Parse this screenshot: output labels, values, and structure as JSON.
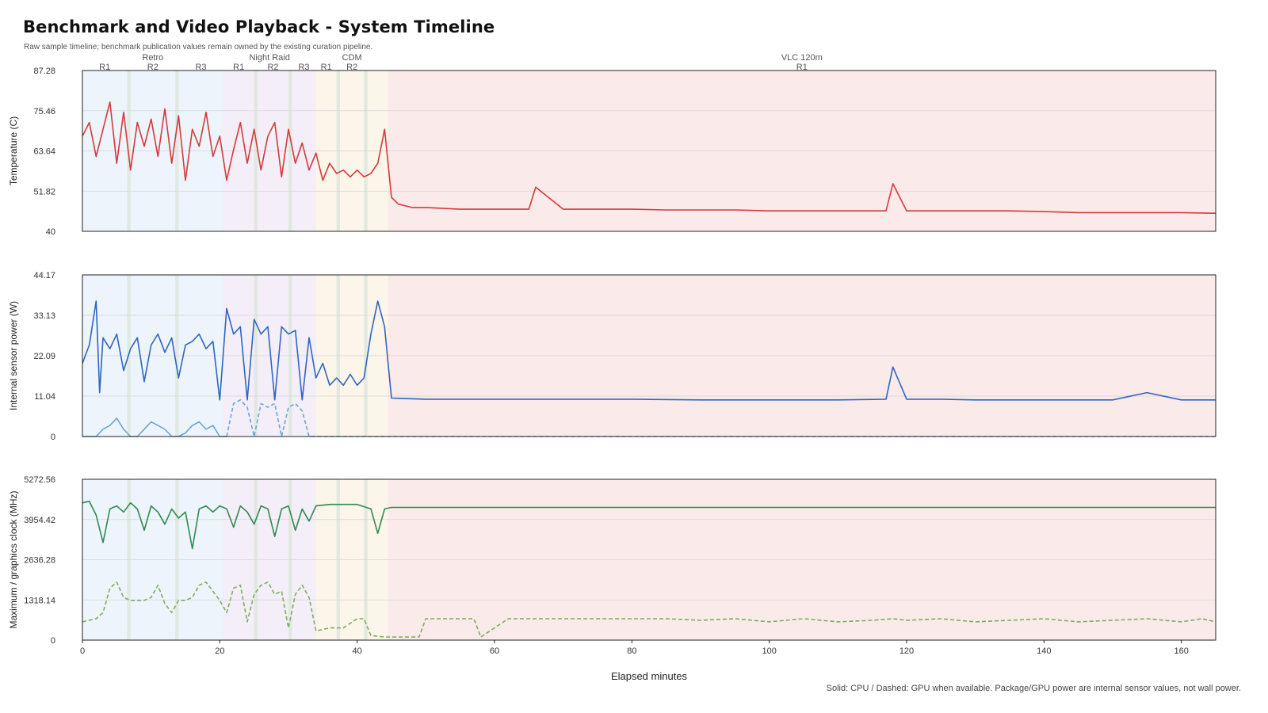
{
  "header": {
    "title": "Benchmark and Video Playback - System Timeline",
    "subtitle": "Raw sample timeline; benchmark publication values remain owned by the existing curation pipeline.",
    "footnote": "Solid: CPU / Dashed: GPU when available. Package/GPU power are internal sensor values, not wall power."
  },
  "chart_data": {
    "type": "line",
    "xlabel": "Elapsed minutes",
    "xlim": [
      0,
      165
    ],
    "xticks": [
      0,
      20,
      40,
      60,
      80,
      100,
      120,
      140,
      160
    ],
    "phases": [
      {
        "name": "Retro",
        "start": 0,
        "end": 20.5,
        "color": "#eef4fb",
        "runs": [
          {
            "label": "R1",
            "start": 0,
            "end": 6.5
          },
          {
            "label": "R2",
            "start": 7,
            "end": 13.5
          },
          {
            "label": "R3",
            "start": 14,
            "end": 20.5
          }
        ]
      },
      {
        "name": "Night Raid",
        "start": 20.5,
        "end": 34,
        "color": "#f4eef8",
        "runs": [
          {
            "label": "R1",
            "start": 20.5,
            "end": 25
          },
          {
            "label": "R2",
            "start": 25.5,
            "end": 30
          },
          {
            "label": "R3",
            "start": 30.5,
            "end": 34
          }
        ]
      },
      {
        "name": "CDM",
        "start": 34,
        "end": 44.5,
        "color": "#fcf5e9",
        "runs": [
          {
            "label": "R1",
            "start": 34,
            "end": 37
          },
          {
            "label": "R2",
            "start": 37.5,
            "end": 41
          }
        ]
      },
      {
        "name": "VLC 120m",
        "start": 44.5,
        "end": 165,
        "color": "#fbeaea",
        "runs": [
          {
            "label": "R1",
            "start": 44.5,
            "end": 165
          }
        ]
      }
    ],
    "panels": [
      {
        "ylabel": "Temperature (C)",
        "ylim": [
          40,
          87.28
        ],
        "yticks": [
          "40",
          "51.82",
          "63.64",
          "75.46",
          "87.28"
        ],
        "series": [
          {
            "color": "#d43a3a",
            "dashed": false,
            "x": [
              0,
              1,
              2,
              3,
              4,
              5,
              6,
              7,
              8,
              9,
              10,
              11,
              12,
              13,
              14,
              15,
              16,
              17,
              18,
              19,
              20,
              21,
              22,
              23,
              24,
              25,
              26,
              27,
              28,
              29,
              30,
              31,
              32,
              33,
              34,
              35,
              36,
              37,
              38,
              39,
              40,
              41,
              42,
              43,
              44,
              45,
              46,
              48,
              50,
              55,
              60,
              65,
              66,
              70,
              75,
              80,
              85,
              90,
              95,
              100,
              105,
              110,
              117,
              118,
              120,
              125,
              128,
              130,
              135,
              140,
              145,
              150,
              155,
              160,
              165
            ],
            "y": [
              68,
              72,
              62,
              70,
              78,
              60,
              75,
              58,
              72,
              65,
              73,
              62,
              76,
              60,
              74,
              55,
              70,
              65,
              75,
              62,
              68,
              55,
              64,
              72,
              60,
              70,
              58,
              68,
              72,
              56,
              70,
              60,
              66,
              58,
              63,
              55,
              60,
              57,
              58,
              56,
              58,
              56,
              57,
              60,
              70,
              50,
              48,
              47,
              47,
              46.5,
              46.5,
              46.5,
              53,
              46.5,
              46.5,
              46.5,
              46.3,
              46.3,
              46.3,
              46,
              46,
              46,
              46,
              54,
              46,
              46,
              46,
              46,
              46,
              45.8,
              45.5,
              45.5,
              45.5,
              45.5,
              45.3
            ]
          }
        ]
      },
      {
        "ylabel": "Internal sensor power (W)",
        "ylim": [
          0,
          44.17
        ],
        "yticks": [
          "0",
          "11.04",
          "22.09",
          "33.13",
          "44.17"
        ],
        "series": [
          {
            "color": "#2f66c0",
            "dashed": false,
            "x": [
              0,
              1,
              2,
              2.5,
              3,
              4,
              5,
              6,
              7,
              8,
              9,
              10,
              11,
              12,
              13,
              14,
              15,
              16,
              17,
              18,
              19,
              20,
              21,
              22,
              23,
              24,
              25,
              26,
              27,
              28,
              29,
              30,
              31,
              32,
              33,
              34,
              35,
              36,
              37,
              38,
              39,
              40,
              41,
              42,
              43,
              44,
              44.5,
              45,
              50,
              55,
              60,
              70,
              80,
              90,
              100,
              110,
              117,
              118,
              120,
              125,
              130,
              140,
              150,
              155,
              160,
              165
            ],
            "y": [
              20,
              25,
              37,
              12,
              27,
              24,
              28,
              18,
              24,
              27,
              15,
              25,
              28,
              23,
              27,
              16,
              25,
              26,
              28,
              24,
              26,
              10,
              35,
              28,
              30,
              10,
              32,
              28,
              30,
              10,
              30,
              28,
              29,
              10,
              27,
              16,
              20,
              14,
              16,
              14,
              17,
              14,
              16,
              28,
              37,
              30,
              20,
              10.5,
              10.2,
              10.2,
              10.2,
              10.2,
              10.2,
              10,
              10,
              10,
              10.2,
              19,
              10.2,
              10.2,
              10,
              10,
              10,
              12,
              10,
              10
            ]
          },
          {
            "color": "#6aa6d8",
            "dashed": false,
            "x": [
              0,
              2,
              3,
              4,
              5,
              6,
              7,
              8,
              9,
              10,
              11,
              12,
              13,
              14,
              15,
              16,
              17,
              18,
              19,
              20,
              21
            ],
            "y": [
              0,
              0,
              2,
              3,
              5,
              2,
              0,
              0,
              2,
              4,
              3,
              2,
              0,
              0,
              1,
              3,
              4,
              2,
              3,
              0,
              0
            ]
          },
          {
            "color": "#6aa6d8",
            "dashed": true,
            "x": [
              21,
              22,
              23,
              24,
              25,
              26,
              27,
              28,
              29,
              30,
              31,
              32,
              33,
              34,
              35,
              165
            ],
            "y": [
              0,
              9,
              10,
              8,
              0,
              9,
              8,
              9,
              0,
              8,
              9,
              7,
              0,
              0,
              0,
              0
            ]
          }
        ]
      },
      {
        "ylabel": "Maximum / graphics clock (MHz)",
        "ylim": [
          0,
          5272.56
        ],
        "yticks": [
          "0",
          "1318.14",
          "2636.28",
          "3954.42",
          "5272.56"
        ],
        "series": [
          {
            "color": "#2e8b4f",
            "dashed": false,
            "x": [
              0,
              1,
              2,
              3,
              4,
              5,
              6,
              7,
              8,
              9,
              10,
              11,
              12,
              13,
              14,
              15,
              16,
              17,
              18,
              19,
              20,
              21,
              22,
              23,
              24,
              25,
              26,
              27,
              28,
              29,
              30,
              31,
              32,
              33,
              34,
              36,
              38,
              40,
              42,
              43,
              44,
              45,
              50,
              60,
              80,
              100,
              120,
              140,
              160,
              165
            ],
            "y": [
              4500,
              4550,
              4100,
              3200,
              4300,
              4400,
              4200,
              4500,
              4300,
              3600,
              4400,
              4200,
              3800,
              4300,
              4000,
              4200,
              3000,
              4300,
              4400,
              4200,
              4400,
              4300,
              3700,
              4400,
              4200,
              3800,
              4400,
              4300,
              3400,
              4300,
              4400,
              3600,
              4300,
              3900,
              4400,
              4450,
              4450,
              4450,
              4300,
              3500,
              4300,
              4350,
              4350,
              4350,
              4350,
              4350,
              4350,
              4350,
              4350,
              4350
            ]
          },
          {
            "color": "#7ab05c",
            "dashed": true,
            "x": [
              0,
              2,
              3,
              4,
              5,
              6,
              7,
              9,
              10,
              11,
              12,
              13,
              14,
              15,
              16,
              17,
              18,
              19,
              20,
              21,
              22,
              23,
              24,
              25,
              26,
              27,
              28,
              29,
              30,
              31,
              32,
              33,
              34,
              36,
              38,
              40,
              41,
              42,
              44,
              45,
              47,
              49,
              50,
              57,
              58,
              62,
              65,
              70,
              72,
              80,
              85,
              90,
              95,
              100,
              105,
              110,
              115,
              118,
              120,
              125,
              130,
              135,
              140,
              145,
              150,
              155,
              160,
              163,
              165
            ],
            "y": [
              600,
              700,
              900,
              1700,
              1900,
              1400,
              1300,
              1300,
              1400,
              1800,
              1200,
              900,
              1300,
              1300,
              1400,
              1800,
              1900,
              1600,
              1300,
              900,
              1700,
              1800,
              600,
              1500,
              1800,
              1900,
              1500,
              1600,
              400,
              1500,
              1800,
              1400,
              300,
              400,
              400,
              700,
              700,
              150,
              100,
              100,
              100,
              100,
              700,
              700,
              100,
              700,
              700,
              700,
              700,
              700,
              700,
              650,
              700,
              600,
              700,
              600,
              650,
              700,
              650,
              700,
              600,
              650,
              700,
              600,
              650,
              700,
              600,
              700,
              600
            ]
          }
        ]
      }
    ]
  }
}
